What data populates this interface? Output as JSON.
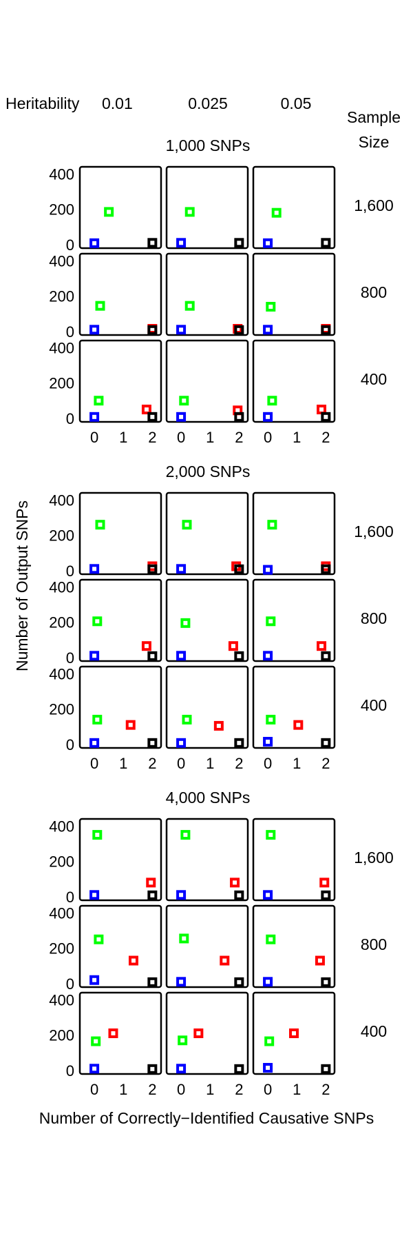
{
  "header": {
    "heritability_label": "Heritability",
    "heritability_values": [
      "0.01",
      "0.025",
      "0.05"
    ],
    "sample_size_label_line1": "Sample",
    "sample_size_label_line2": "Size"
  },
  "row_labels": [
    "1,600",
    "800",
    "400"
  ],
  "ylabel": "Number of Output SNPs",
  "xlabel": "Number of Correctly−Identified Causative SNPs",
  "colors": {
    "series_blue": "#0000ff",
    "series_green": "#00ff00",
    "series_red": "#ff0000",
    "series_black": "#000000"
  },
  "chart_data": [
    {
      "type": "scatter",
      "title": "1,000 SNPs",
      "xticks": [
        "0",
        "1",
        "2"
      ],
      "yticks": [
        "0",
        "200",
        "400"
      ],
      "xlim": [
        -0.5,
        2.3
      ],
      "ylim": [
        -20,
        440
      ],
      "heritability": [
        "0.01",
        "0.025",
        "0.05"
      ],
      "sample_size": [
        "1,600",
        "800",
        "400"
      ],
      "panels": [
        [
          {
            "blue": [
              0.0,
              8
            ],
            "green": [
              0.5,
              185
            ],
            "red": null,
            "black": [
              2.0,
              10
            ]
          },
          {
            "blue": [
              0.0,
              10
            ],
            "green": [
              0.3,
              185
            ],
            "red": null,
            "black": [
              2.0,
              10
            ]
          },
          {
            "blue": [
              0.0,
              8
            ],
            "green": [
              0.3,
              180
            ],
            "red": null,
            "black": [
              2.0,
              10
            ]
          }
        ],
        [
          {
            "blue": [
              0.0,
              10
            ],
            "green": [
              0.2,
              145
            ],
            "red": [
              2.0,
              15
            ],
            "black": [
              2.0,
              8
            ]
          },
          {
            "blue": [
              0.0,
              10
            ],
            "green": [
              0.3,
              145
            ],
            "red": [
              1.95,
              15
            ],
            "black": [
              2.0,
              8
            ]
          },
          {
            "blue": [
              0.0,
              10
            ],
            "green": [
              0.1,
              140
            ],
            "red": [
              2.0,
              15
            ],
            "black": [
              2.0,
              8
            ]
          }
        ],
        [
          {
            "blue": [
              0.0,
              8
            ],
            "green": [
              0.15,
              100
            ],
            "red": [
              1.8,
              50
            ],
            "black": [
              2.0,
              8
            ]
          },
          {
            "blue": [
              0.0,
              8
            ],
            "green": [
              0.1,
              100
            ],
            "red": [
              1.95,
              45
            ],
            "black": [
              2.0,
              8
            ]
          },
          {
            "blue": [
              0.0,
              8
            ],
            "green": [
              0.15,
              100
            ],
            "red": [
              1.85,
              50
            ],
            "black": [
              2.0,
              8
            ]
          }
        ]
      ]
    },
    {
      "type": "scatter",
      "title": "2,000 SNPs",
      "xticks": [
        "0",
        "1",
        "2"
      ],
      "yticks": [
        "0",
        "200",
        "400"
      ],
      "xlim": [
        -0.5,
        2.3
      ],
      "ylim": [
        -20,
        440
      ],
      "heritability": [
        "0.01",
        "0.025",
        "0.05"
      ],
      "sample_size": [
        "1,600",
        "800",
        "400"
      ],
      "panels": [
        [
          {
            "blue": [
              0.0,
              10
            ],
            "green": [
              0.2,
              260
            ],
            "red": [
              2.0,
              25
            ],
            "black": [
              2.0,
              8
            ]
          },
          {
            "blue": [
              0.0,
              10
            ],
            "green": [
              0.2,
              260
            ],
            "red": [
              1.9,
              25
            ],
            "black": [
              2.0,
              8
            ]
          },
          {
            "blue": [
              0.0,
              5
            ],
            "green": [
              0.15,
              260
            ],
            "red": [
              2.0,
              25
            ],
            "black": [
              2.0,
              8
            ]
          }
        ],
        [
          {
            "blue": [
              0.0,
              10
            ],
            "green": [
              0.1,
              205
            ],
            "red": [
              1.8,
              65
            ],
            "black": [
              2.0,
              8
            ]
          },
          {
            "blue": [
              0.0,
              10
            ],
            "green": [
              0.15,
              195
            ],
            "red": [
              1.8,
              65
            ],
            "black": [
              2.0,
              8
            ]
          },
          {
            "blue": [
              0.0,
              10
            ],
            "green": [
              0.1,
              205
            ],
            "red": [
              1.85,
              65
            ],
            "black": [
              2.0,
              8
            ]
          }
        ],
        [
          {
            "blue": [
              0.0,
              8
            ],
            "green": [
              0.1,
              140
            ],
            "red": [
              1.25,
              110
            ],
            "black": [
              2.0,
              8
            ]
          },
          {
            "blue": [
              0.0,
              8
            ],
            "green": [
              0.2,
              140
            ],
            "red": [
              1.3,
              105
            ],
            "black": [
              2.0,
              8
            ]
          },
          {
            "blue": [
              0.0,
              15
            ],
            "green": [
              0.1,
              140
            ],
            "red": [
              1.05,
              110
            ],
            "black": [
              2.0,
              8
            ]
          }
        ]
      ]
    },
    {
      "type": "scatter",
      "title": "4,000 SNPs",
      "xticks": [
        "0",
        "1",
        "2"
      ],
      "yticks": [
        "0",
        "200",
        "400"
      ],
      "xlim": [
        -0.5,
        2.3
      ],
      "ylim": [
        -20,
        440
      ],
      "heritability": [
        "0.01",
        "0.025",
        "0.05"
      ],
      "sample_size": [
        "1,600",
        "800",
        "400"
      ],
      "panels": [
        [
          {
            "blue": [
              0.0,
              10
            ],
            "green": [
              0.1,
              350
            ],
            "red": [
              1.95,
              80
            ],
            "black": [
              2.0,
              8
            ]
          },
          {
            "blue": [
              0.0,
              10
            ],
            "green": [
              0.15,
              350
            ],
            "red": [
              1.85,
              80
            ],
            "black": [
              2.0,
              8
            ]
          },
          {
            "blue": [
              0.0,
              10
            ],
            "green": [
              0.1,
              350
            ],
            "red": [
              1.95,
              80
            ],
            "black": [
              2.0,
              8
            ]
          }
        ],
        [
          {
            "blue": [
              0.0,
              20
            ],
            "green": [
              0.15,
              250
            ],
            "red": [
              1.35,
              130
            ],
            "black": [
              2.0,
              8
            ]
          },
          {
            "blue": [
              0.0,
              10
            ],
            "green": [
              0.1,
              255
            ],
            "red": [
              1.5,
              130
            ],
            "black": [
              2.0,
              8
            ]
          },
          {
            "blue": [
              0.0,
              10
            ],
            "green": [
              0.1,
              250
            ],
            "red": [
              1.8,
              130
            ],
            "black": [
              2.0,
              8
            ]
          }
        ],
        [
          {
            "blue": [
              0.0,
              10
            ],
            "green": [
              0.05,
              165
            ],
            "red": [
              0.65,
              210
            ],
            "black": [
              2.0,
              8
            ]
          },
          {
            "blue": [
              0.0,
              10
            ],
            "green": [
              0.05,
              170
            ],
            "red": [
              0.6,
              210
            ],
            "black": [
              2.0,
              8
            ]
          },
          {
            "blue": [
              0.0,
              15
            ],
            "green": [
              0.05,
              165
            ],
            "red": [
              0.9,
              210
            ],
            "black": [
              2.0,
              8
            ]
          }
        ]
      ]
    }
  ]
}
